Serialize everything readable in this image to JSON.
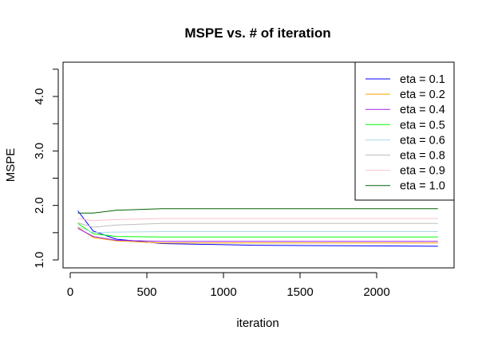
{
  "chart_data": {
    "type": "line",
    "title": "MSPE vs. # of iteration",
    "xlabel": "iteration",
    "ylabel": "MSPE",
    "xlim": [
      0,
      2450
    ],
    "ylim": [
      0.85,
      4.6
    ],
    "xticks": [
      0,
      500,
      1000,
      1500,
      2000
    ],
    "yticks": [
      1.0,
      2.0,
      3.0,
      4.0
    ],
    "ytick_labels": [
      "1.0",
      "2.0",
      "3.0",
      "4.0"
    ],
    "grid": false,
    "legend_position": "top-right",
    "x": [
      50,
      150,
      300,
      600,
      1200,
      2400
    ],
    "series": [
      {
        "name": "eta = 0.1",
        "color": "#0000ff",
        "values": [
          1.9,
          1.53,
          1.38,
          1.3,
          1.27,
          1.25
        ]
      },
      {
        "name": "eta = 0.2",
        "color": "#ffa500",
        "values": [
          1.6,
          1.41,
          1.35,
          1.31,
          1.31,
          1.31
        ]
      },
      {
        "name": "eta = 0.4",
        "color": "#a020f0",
        "values": [
          1.58,
          1.43,
          1.36,
          1.34,
          1.34,
          1.34
        ]
      },
      {
        "name": "eta = 0.5",
        "color": "#00ff00",
        "values": [
          1.67,
          1.48,
          1.43,
          1.42,
          1.42,
          1.42
        ]
      },
      {
        "name": "eta = 0.6",
        "color": "#add8e6",
        "values": [
          1.61,
          1.5,
          1.51,
          1.52,
          1.52,
          1.52
        ]
      },
      {
        "name": "eta = 0.8",
        "color": "#bebebe",
        "values": [
          1.68,
          1.6,
          1.64,
          1.67,
          1.67,
          1.67
        ]
      },
      {
        "name": "eta = 0.9",
        "color": "#ffc0cb",
        "values": [
          1.76,
          1.72,
          1.74,
          1.76,
          1.76,
          1.76
        ]
      },
      {
        "name": "eta = 1.0",
        "color": "#006400",
        "values": [
          1.86,
          1.86,
          1.91,
          1.94,
          1.94,
          1.94
        ]
      }
    ]
  }
}
